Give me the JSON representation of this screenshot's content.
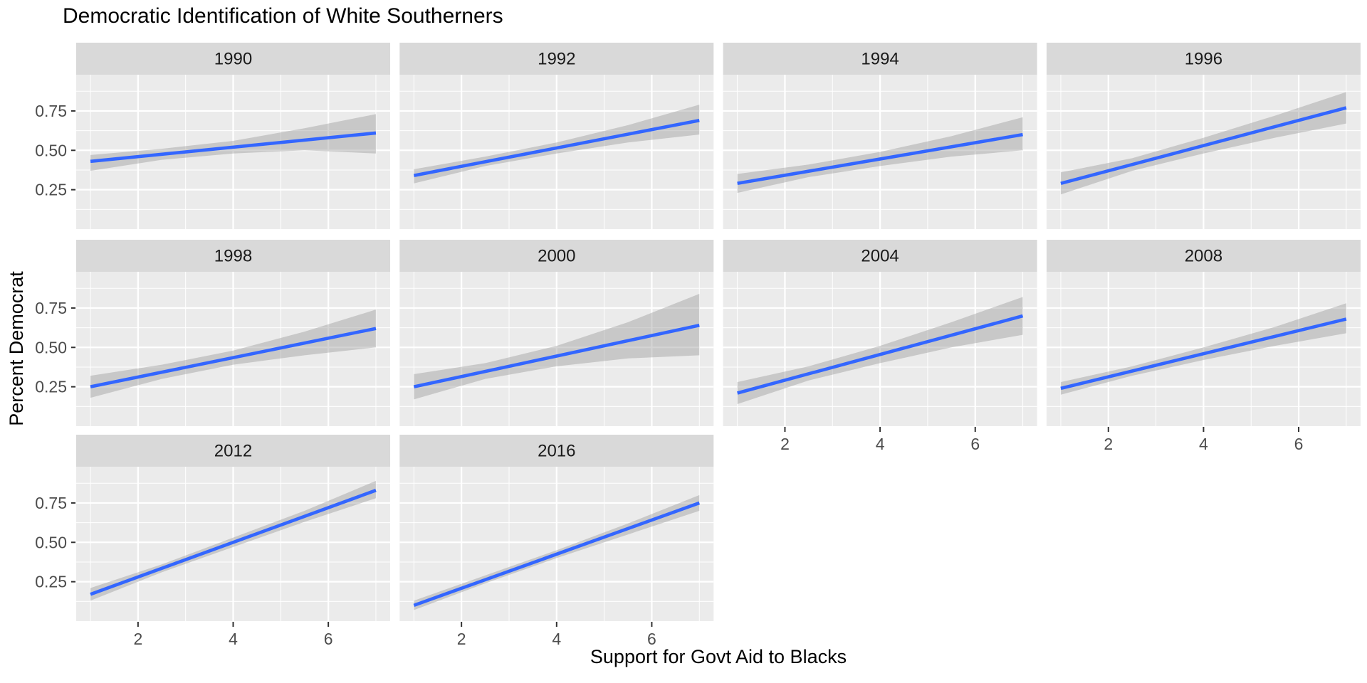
{
  "title": "Democratic Identification of White Southerners",
  "x_axis_title": "Support for Govt Aid to Blacks",
  "y_axis_title": "Percent Democrat",
  "colors": {
    "trend_line": "#3366FF",
    "confidence_band": "#999999",
    "confidence_band_opacity": 0.42,
    "panel_background": "#EBEBEB",
    "strip_background": "#D9D9D9",
    "grid_line": "#FFFFFF",
    "tick_label": "#4D4D4D",
    "strip_text": "#1A1A1A",
    "tick_mark": "#333333"
  },
  "chart_data": {
    "type": "line",
    "title": "Democratic Identification of White Southerners",
    "xlabel": "Support for Govt Aid to Blacks",
    "ylabel": "Percent Democrat",
    "facet_variable": "year",
    "xlim": [
      0.7,
      7.3
    ],
    "ylim": [
      0,
      0.98
    ],
    "x_ticks": [
      2,
      4,
      6
    ],
    "x_tick_labels": [
      "2",
      "4",
      "6"
    ],
    "y_ticks": [
      0.75,
      0.5,
      0.25
    ],
    "y_tick_labels": [
      "0.75",
      "0.50",
      "0.25"
    ],
    "x_minor_gridlines": [
      1,
      3,
      5,
      7
    ],
    "y_minor_gridlines": [
      0.125,
      0.375,
      0.625,
      0.875
    ],
    "grid": true,
    "legend": "none",
    "description": "Linear trend (with confidence band) of percent Democrat vs support for government aid to Blacks (scale 1-7), faceted by survey year.",
    "facets": [
      {
        "label": "1990",
        "row": 0,
        "col": 0,
        "show_y_axis": true,
        "show_x_axis": false,
        "trend": {
          "x": [
            1,
            7
          ],
          "y": [
            0.43,
            0.61
          ]
        },
        "ci": {
          "x": [
            1,
            2.5,
            4,
            5.5,
            7
          ],
          "lower": [
            0.37,
            0.44,
            0.48,
            0.5,
            0.48
          ],
          "upper": [
            0.47,
            0.51,
            0.56,
            0.64,
            0.73
          ]
        }
      },
      {
        "label": "1992",
        "row": 0,
        "col": 1,
        "show_y_axis": false,
        "show_x_axis": false,
        "trend": {
          "x": [
            1,
            7
          ],
          "y": [
            0.34,
            0.69
          ]
        },
        "ci": {
          "x": [
            1,
            2.5,
            4,
            5.5,
            7
          ],
          "lower": [
            0.29,
            0.4,
            0.48,
            0.55,
            0.6
          ],
          "upper": [
            0.38,
            0.46,
            0.55,
            0.66,
            0.79
          ]
        }
      },
      {
        "label": "1994",
        "row": 0,
        "col": 2,
        "show_y_axis": false,
        "show_x_axis": false,
        "trend": {
          "x": [
            1,
            7
          ],
          "y": [
            0.29,
            0.6
          ]
        },
        "ci": {
          "x": [
            1,
            2.5,
            4,
            5.5,
            7
          ],
          "lower": [
            0.23,
            0.33,
            0.4,
            0.46,
            0.5
          ],
          "upper": [
            0.35,
            0.41,
            0.49,
            0.59,
            0.71
          ]
        }
      },
      {
        "label": "1996",
        "row": 0,
        "col": 3,
        "show_y_axis": false,
        "show_x_axis": false,
        "trend": {
          "x": [
            1,
            7
          ],
          "y": [
            0.29,
            0.77
          ]
        },
        "ci": {
          "x": [
            1,
            2.5,
            4,
            5.5,
            7
          ],
          "lower": [
            0.22,
            0.37,
            0.48,
            0.58,
            0.67
          ],
          "upper": [
            0.36,
            0.45,
            0.58,
            0.72,
            0.87
          ]
        }
      },
      {
        "label": "1998",
        "row": 1,
        "col": 0,
        "show_y_axis": true,
        "show_x_axis": false,
        "trend": {
          "x": [
            1,
            7
          ],
          "y": [
            0.25,
            0.62
          ]
        },
        "ci": {
          "x": [
            1,
            2.5,
            4,
            5.5,
            7
          ],
          "lower": [
            0.18,
            0.3,
            0.39,
            0.45,
            0.5
          ],
          "upper": [
            0.32,
            0.39,
            0.48,
            0.6,
            0.74
          ]
        }
      },
      {
        "label": "2000",
        "row": 1,
        "col": 1,
        "show_y_axis": false,
        "show_x_axis": false,
        "trend": {
          "x": [
            1,
            7
          ],
          "y": [
            0.25,
            0.64
          ]
        },
        "ci": {
          "x": [
            1,
            2.5,
            4,
            5.5,
            7
          ],
          "lower": [
            0.17,
            0.3,
            0.38,
            0.43,
            0.45
          ],
          "upper": [
            0.33,
            0.4,
            0.51,
            0.66,
            0.84
          ]
        }
      },
      {
        "label": "2004",
        "row": 1,
        "col": 2,
        "show_y_axis": false,
        "show_x_axis": true,
        "trend": {
          "x": [
            1,
            7
          ],
          "y": [
            0.21,
            0.7
          ]
        },
        "ci": {
          "x": [
            1,
            2.5,
            4,
            5.5,
            7
          ],
          "lower": [
            0.14,
            0.29,
            0.4,
            0.5,
            0.58
          ],
          "upper": [
            0.28,
            0.38,
            0.51,
            0.66,
            0.82
          ]
        }
      },
      {
        "label": "2008",
        "row": 1,
        "col": 3,
        "show_y_axis": false,
        "show_x_axis": true,
        "trend": {
          "x": [
            1,
            7
          ],
          "y": [
            0.24,
            0.68
          ]
        },
        "ci": {
          "x": [
            1,
            2.5,
            4,
            5.5,
            7
          ],
          "lower": [
            0.2,
            0.32,
            0.42,
            0.51,
            0.59
          ],
          "upper": [
            0.28,
            0.38,
            0.5,
            0.63,
            0.78
          ]
        }
      },
      {
        "label": "2012",
        "row": 2,
        "col": 0,
        "show_y_axis": true,
        "show_x_axis": true,
        "trend": {
          "x": [
            1,
            7
          ],
          "y": [
            0.17,
            0.83
          ]
        },
        "ci": {
          "x": [
            1,
            2.5,
            4,
            5.5,
            7
          ],
          "lower": [
            0.13,
            0.31,
            0.47,
            0.63,
            0.78
          ],
          "upper": [
            0.21,
            0.36,
            0.53,
            0.7,
            0.89
          ]
        }
      },
      {
        "label": "2016",
        "row": 2,
        "col": 1,
        "show_y_axis": false,
        "show_x_axis": true,
        "trend": {
          "x": [
            1,
            7
          ],
          "y": [
            0.1,
            0.75
          ]
        },
        "ci": {
          "x": [
            1,
            2.5,
            4,
            5.5,
            7
          ],
          "lower": [
            0.07,
            0.24,
            0.4,
            0.55,
            0.7
          ],
          "upper": [
            0.13,
            0.29,
            0.45,
            0.62,
            0.8
          ]
        }
      }
    ]
  }
}
